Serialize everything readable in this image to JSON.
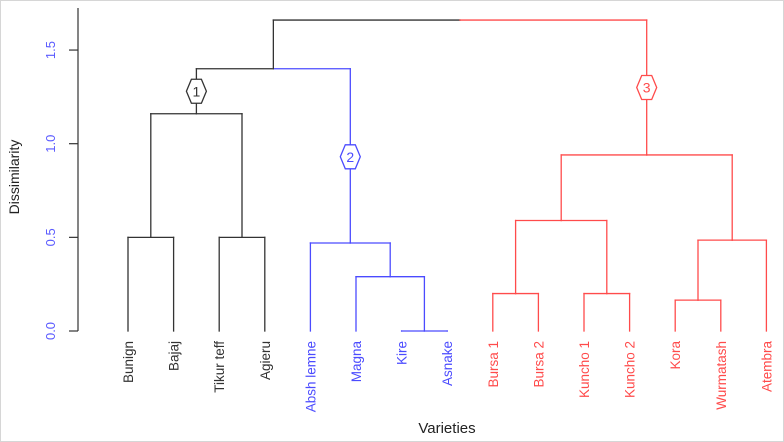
{
  "chart_data": {
    "type": "dendrogram",
    "title": "",
    "xlabel": "Varieties",
    "ylabel": "Dissimilarity",
    "ylim": [
      0,
      1.66
    ],
    "yticks": [
      {
        "value": 0.0,
        "label": "0.0"
      },
      {
        "value": 0.5,
        "label": "0.5"
      },
      {
        "value": 1.0,
        "label": "1.0"
      },
      {
        "value": 1.5,
        "label": "1.5"
      }
    ],
    "colors": {
      "black": "#333333",
      "blue": "#4b4bff",
      "red": "#ff4b4b",
      "tick": "#5a5aff"
    },
    "leaves": [
      {
        "name": "Bunign",
        "color": "black"
      },
      {
        "name": "Bajaj",
        "color": "black"
      },
      {
        "name": "Tikur teff",
        "color": "black"
      },
      {
        "name": "Agieru",
        "color": "black"
      },
      {
        "name": "Absh lemne",
        "color": "blue"
      },
      {
        "name": "Magna",
        "color": "blue"
      },
      {
        "name": "Kire",
        "color": "blue"
      },
      {
        "name": "Asnake",
        "color": "blue"
      },
      {
        "name": "Bursa 1",
        "color": "red"
      },
      {
        "name": "Bursa 2",
        "color": "red"
      },
      {
        "name": "Kuncho 1",
        "color": "red"
      },
      {
        "name": "Kuncho 2",
        "color": "red"
      },
      {
        "name": "Kora",
        "color": "red"
      },
      {
        "name": "Wurmatash",
        "color": "red"
      },
      {
        "name": "Atembra",
        "color": "red"
      }
    ],
    "merges": [
      {
        "left": "L0",
        "right": "L1",
        "height": 0.5,
        "color": "black"
      },
      {
        "left": "L2",
        "right": "L3",
        "height": 0.5,
        "color": "black"
      },
      {
        "left": "M0",
        "right": "M1",
        "height": 1.16,
        "color": "black"
      },
      {
        "left": "L6",
        "right": "L7",
        "height": 0.0,
        "color": "blue"
      },
      {
        "left": "L5",
        "right": "M3",
        "height": 0.29,
        "color": "blue"
      },
      {
        "left": "L4",
        "right": "M4",
        "height": 0.47,
        "color": "blue"
      },
      {
        "left": "M2",
        "right": "M5",
        "height": 1.4,
        "color": "black"
      },
      {
        "left": "L8",
        "right": "L9",
        "height": 0.2,
        "color": "red"
      },
      {
        "left": "L10",
        "right": "L11",
        "height": 0.2,
        "color": "red"
      },
      {
        "left": "M7",
        "right": "M8",
        "height": 0.59,
        "color": "red"
      },
      {
        "left": "L12",
        "right": "L13",
        "height": 0.165,
        "color": "red"
      },
      {
        "left": "M10",
        "right": "L14",
        "height": 0.485,
        "color": "red"
      },
      {
        "left": "M9",
        "right": "M11",
        "height": 0.94,
        "color": "red"
      },
      {
        "left": "M6",
        "right": "M12",
        "height": 1.66,
        "color": "black"
      }
    ],
    "cluster_labels": [
      {
        "label": "1",
        "node": "M2",
        "height": 1.28,
        "color": "black"
      },
      {
        "label": "2",
        "node": "M5",
        "height": 0.93,
        "color": "blue"
      },
      {
        "label": "3",
        "node": "M12",
        "height": 1.3,
        "color": "red"
      }
    ]
  }
}
